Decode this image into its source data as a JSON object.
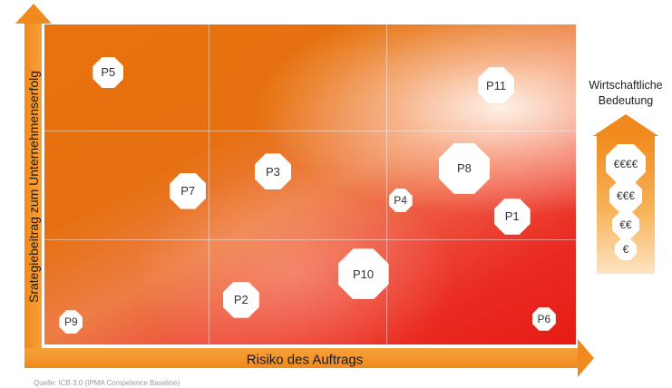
{
  "axes": {
    "y_label": "Srategiebeitrag zum Unternehmenserfolg",
    "x_label": "Risiko des Auftrags"
  },
  "legend": {
    "title": "Wirtschaftliche Bedeutung",
    "levels": [
      "€€€€",
      "€€€",
      "€€",
      "€"
    ]
  },
  "projects": [
    {
      "label": "P5",
      "risk": 0.12,
      "contribution": 0.85,
      "importance": 2
    },
    {
      "label": "P11",
      "risk": 0.85,
      "contribution": 0.81,
      "importance": 3
    },
    {
      "label": "P3",
      "risk": 0.43,
      "contribution": 0.54,
      "importance": 3
    },
    {
      "label": "P8",
      "risk": 0.79,
      "contribution": 0.55,
      "importance": 4
    },
    {
      "label": "P7",
      "risk": 0.27,
      "contribution": 0.48,
      "importance": 3
    },
    {
      "label": "P4",
      "risk": 0.67,
      "contribution": 0.45,
      "importance": 1
    },
    {
      "label": "P1",
      "risk": 0.88,
      "contribution": 0.4,
      "importance": 3
    },
    {
      "label": "P10",
      "risk": 0.6,
      "contribution": 0.22,
      "importance": 4
    },
    {
      "label": "P2",
      "risk": 0.37,
      "contribution": 0.14,
      "importance": 3
    },
    {
      "label": "P9",
      "risk": 0.05,
      "contribution": 0.07,
      "importance": 1
    },
    {
      "label": "P6",
      "risk": 0.94,
      "contribution": 0.08,
      "importance": 1
    }
  ],
  "source_text": "Quelle: ICB 3.0 (IPMA Competence Baseline)"
}
